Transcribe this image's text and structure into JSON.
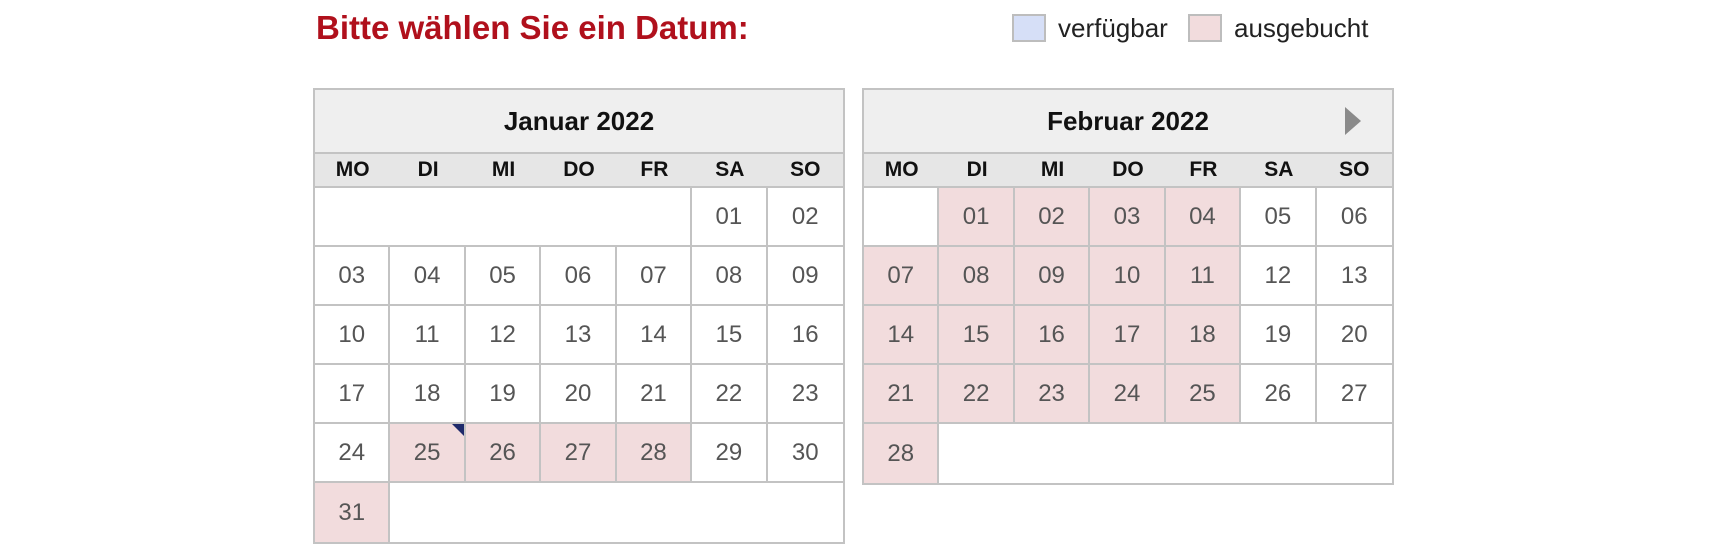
{
  "title": "Bitte wählen Sie ein Datum:",
  "legend": {
    "available": {
      "label": "verfügbar",
      "color": "#d6dff7"
    },
    "booked": {
      "label": "ausgebucht",
      "color": "#f2dcdd"
    }
  },
  "weekdays": [
    "MO",
    "DI",
    "MI",
    "DO",
    "FR",
    "SA",
    "SO"
  ],
  "calendars": [
    {
      "month_label": "Januar 2022",
      "start_offset": 5,
      "days": [
        "01",
        "02",
        "03",
        "04",
        "05",
        "06",
        "07",
        "08",
        "09",
        "10",
        "11",
        "12",
        "13",
        "14",
        "15",
        "16",
        "17",
        "18",
        "19",
        "20",
        "21",
        "22",
        "23",
        "24",
        "25",
        "26",
        "27",
        "28",
        "29",
        "30",
        "31"
      ],
      "booked": [
        "25",
        "26",
        "27",
        "28",
        "31"
      ],
      "marked": [
        "25"
      ],
      "has_next": false
    },
    {
      "month_label": "Februar 2022",
      "start_offset": 1,
      "days": [
        "01",
        "02",
        "03",
        "04",
        "05",
        "06",
        "07",
        "08",
        "09",
        "10",
        "11",
        "12",
        "13",
        "14",
        "15",
        "16",
        "17",
        "18",
        "19",
        "20",
        "21",
        "22",
        "23",
        "24",
        "25",
        "26",
        "27",
        "28"
      ],
      "booked": [
        "01",
        "02",
        "03",
        "04",
        "07",
        "08",
        "09",
        "10",
        "11",
        "14",
        "15",
        "16",
        "17",
        "18",
        "21",
        "22",
        "23",
        "24",
        "25",
        "28"
      ],
      "marked": [],
      "has_next": true
    }
  ],
  "icons": {
    "next": "chevron-right-icon"
  }
}
